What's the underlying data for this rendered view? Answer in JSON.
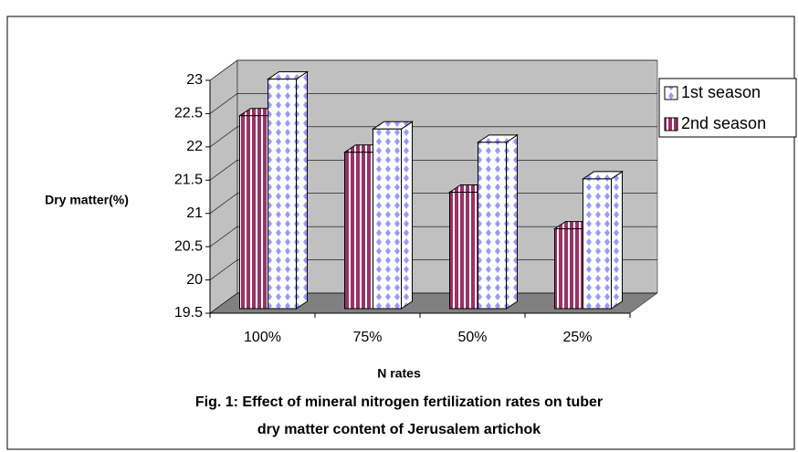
{
  "chart_data": {
    "type": "bar3d",
    "title": [
      "Fig. 1: Effect of mineral nitrogen fertilization rates on tuber",
      "dry matter content of Jerusalem artichok"
    ],
    "x_label": "N rates",
    "y_label": "Dry matter(%)",
    "categories": [
      "100%",
      "75%",
      "50%",
      "25%"
    ],
    "series": [
      {
        "name": "1st season",
        "color": "#9999ff",
        "values": [
          22.95,
          22.2,
          22.0,
          21.45
        ]
      },
      {
        "name": "2nd season",
        "color": "#993366",
        "values": [
          22.4,
          21.85,
          21.25,
          20.7
        ]
      }
    ],
    "ylim": [
      19.5,
      23
    ],
    "yticks": [
      19.5,
      20,
      20.5,
      21,
      21.5,
      22,
      22.5,
      23
    ],
    "grid": true,
    "legend": "right"
  }
}
